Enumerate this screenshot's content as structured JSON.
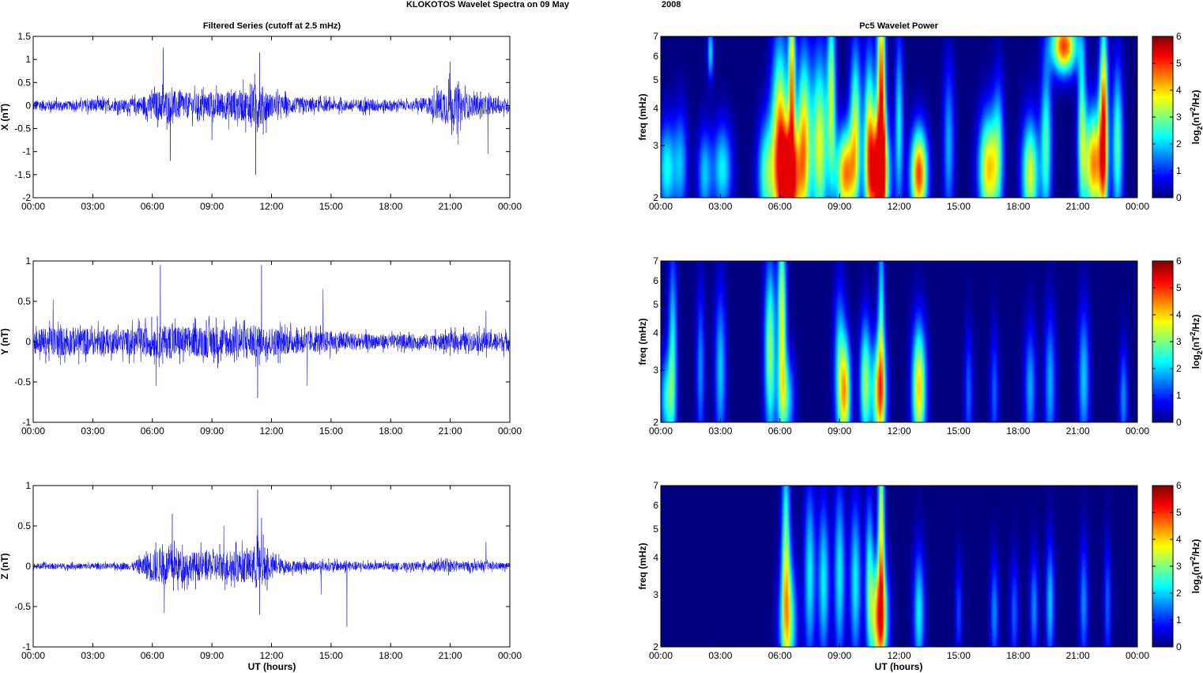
{
  "figure": {
    "suptitle": "KLOKOTOS Wavelet Spectra on 09 May",
    "suptitle_year": "2008",
    "left_title": "Filtered Series (cutoff at 2.5 mHz)",
    "right_title": "Pc5 Wavelet Power",
    "xlabel": "UT (hours)",
    "spec_ylabel": "freq (mHz)",
    "colorbar_label": "log2(nT2/Hz)"
  },
  "chart_data": [
    {
      "type": "line",
      "component": "X",
      "ylabel": "X (nT)",
      "xlim": [
        0,
        24
      ],
      "ylim": [
        -2,
        1.5
      ],
      "yticks": [
        -2,
        -1.5,
        -1,
        -0.5,
        0,
        0.5,
        1,
        1.5
      ],
      "ytick_labels": [
        "-2",
        "-1.5",
        "-1",
        "-0.5",
        "0",
        "0.5",
        "1",
        "1.5"
      ],
      "xtick_labels": [
        "00:00",
        "03:00",
        "06:00",
        "09:00",
        "12:00",
        "15:00",
        "18:00",
        "21:00",
        "00:00"
      ],
      "series": [
        {
          "color": "#0000ff",
          "envelope_hours": [
            0,
            1,
            2,
            3,
            4,
            5,
            6,
            6.5,
            7,
            8,
            9,
            10,
            11,
            11.3,
            11.6,
            12,
            13,
            14,
            15,
            16,
            17,
            18,
            19,
            20,
            20.5,
            21,
            21.5,
            22,
            23,
            24
          ],
          "envelope_nT": [
            0.2,
            0.2,
            0.15,
            0.25,
            0.2,
            0.25,
            0.45,
            0.6,
            0.55,
            0.45,
            0.45,
            0.55,
            0.6,
            0.9,
            0.7,
            0.4,
            0.3,
            0.25,
            0.2,
            0.2,
            0.25,
            0.2,
            0.15,
            0.35,
            0.6,
            0.75,
            0.6,
            0.4,
            0.3,
            0.25
          ],
          "peaks": [
            {
              "x": 6.55,
              "y": 1.25
            },
            {
              "x": 6.9,
              "y": -1.2
            },
            {
              "x": 11.2,
              "y": -1.5
            },
            {
              "x": 11.4,
              "y": 1.15
            },
            {
              "x": 9.0,
              "y": -0.75
            },
            {
              "x": 21.0,
              "y": 0.95
            },
            {
              "x": 22.9,
              "y": -1.05
            },
            {
              "x": 21.4,
              "y": -0.85
            },
            {
              "x": 24.0,
              "y": -0.55
            }
          ]
        }
      ]
    },
    {
      "type": "heatmap",
      "component": "X",
      "title": "Pc5 Wavelet Power",
      "ylabel": "freq (mHz)",
      "xlim": [
        0,
        24
      ],
      "ylim": [
        2,
        7
      ],
      "yscale": "log",
      "yticks": [
        2,
        3,
        4,
        5,
        6,
        7
      ],
      "xtick_labels": [
        "00:00",
        "03:00",
        "06:00",
        "09:00",
        "12:00",
        "15:00",
        "18:00",
        "21:00",
        "00:00"
      ],
      "colorbar": {
        "label": "log2(nT2/Hz)",
        "range": [
          0,
          6
        ],
        "ticks": [
          0,
          1,
          2,
          3,
          4,
          5,
          6
        ],
        "colormap": "jet"
      },
      "blobs": [
        {
          "t": 0.3,
          "f": 2.5,
          "p": 2.6,
          "wt": 0.3,
          "wf": 0.26
        },
        {
          "t": 1.0,
          "f": 2.6,
          "p": 2.0,
          "wt": 0.25,
          "wf": 0.3
        },
        {
          "t": 2.2,
          "f": 2.4,
          "p": 2.1,
          "wt": 0.25,
          "wf": 0.25
        },
        {
          "t": 3.1,
          "f": 2.5,
          "p": 2.5,
          "wt": 0.35,
          "wf": 0.25
        },
        {
          "t": 2.5,
          "f": 6.2,
          "p": 2.5,
          "wt": 0.1,
          "wf": 0.15
        },
        {
          "t": 5.3,
          "f": 2.4,
          "p": 3.0,
          "wt": 0.3,
          "wf": 0.3
        },
        {
          "t": 6.0,
          "f": 3.0,
          "p": 5.0,
          "wt": 0.3,
          "wf": 0.55
        },
        {
          "t": 6.5,
          "f": 2.3,
          "p": 6.0,
          "wt": 0.35,
          "wf": 0.28
        },
        {
          "t": 6.6,
          "f": 5.0,
          "p": 4.5,
          "wt": 0.12,
          "wf": 0.5
        },
        {
          "t": 7.2,
          "f": 3.0,
          "p": 4.5,
          "wt": 0.25,
          "wf": 0.5
        },
        {
          "t": 8.0,
          "f": 3.0,
          "p": 4.0,
          "wt": 0.3,
          "wf": 0.5
        },
        {
          "t": 8.6,
          "f": 4.5,
          "p": 3.5,
          "wt": 0.15,
          "wf": 0.5
        },
        {
          "t": 9.3,
          "f": 2.4,
          "p": 5.0,
          "wt": 0.35,
          "wf": 0.25
        },
        {
          "t": 9.8,
          "f": 3.5,
          "p": 3.5,
          "wt": 0.2,
          "wf": 0.45
        },
        {
          "t": 10.5,
          "f": 3.0,
          "p": 4.0,
          "wt": 0.2,
          "wf": 0.5
        },
        {
          "t": 11.0,
          "f": 2.4,
          "p": 6.0,
          "wt": 0.35,
          "wf": 0.3
        },
        {
          "t": 11.1,
          "f": 4.5,
          "p": 5.5,
          "wt": 0.15,
          "wf": 0.65
        },
        {
          "t": 12.0,
          "f": 3.5,
          "p": 2.5,
          "wt": 0.15,
          "wf": 0.5
        },
        {
          "t": 13.0,
          "f": 2.4,
          "p": 5.5,
          "wt": 0.3,
          "wf": 0.25
        },
        {
          "t": 14.5,
          "f": 3.0,
          "p": 2.0,
          "wt": 0.2,
          "wf": 0.45
        },
        {
          "t": 16.5,
          "f": 2.5,
          "p": 4.5,
          "wt": 0.35,
          "wf": 0.3
        },
        {
          "t": 17.0,
          "f": 3.0,
          "p": 2.0,
          "wt": 0.2,
          "wf": 0.4
        },
        {
          "t": 18.6,
          "f": 2.4,
          "p": 4.0,
          "wt": 0.3,
          "wf": 0.3
        },
        {
          "t": 19.4,
          "f": 3.0,
          "p": 3.0,
          "wt": 0.2,
          "wf": 0.45
        },
        {
          "t": 20.3,
          "f": 6.5,
          "p": 5.5,
          "wt": 0.45,
          "wf": 0.15
        },
        {
          "t": 21.2,
          "f": 3.5,
          "p": 3.0,
          "wt": 0.15,
          "wf": 0.5
        },
        {
          "t": 21.8,
          "f": 2.6,
          "p": 5.0,
          "wt": 0.35,
          "wf": 0.3
        },
        {
          "t": 22.3,
          "f": 3.5,
          "p": 5.5,
          "wt": 0.15,
          "wf": 0.55
        },
        {
          "t": 23.0,
          "f": 3.0,
          "p": 3.0,
          "wt": 0.2,
          "wf": 0.45
        }
      ]
    },
    {
      "type": "line",
      "component": "Y",
      "ylabel": "Y (nT)",
      "xlim": [
        0,
        24
      ],
      "ylim": [
        -1,
        1
      ],
      "yticks": [
        -1,
        -0.5,
        0,
        0.5,
        1
      ],
      "ytick_labels": [
        "-1",
        "-0.5",
        "0",
        "0.5",
        "1"
      ],
      "xtick_labels": [
        "00:00",
        "03:00",
        "06:00",
        "09:00",
        "12:00",
        "15:00",
        "18:00",
        "21:00",
        "00:00"
      ],
      "series": [
        {
          "color": "#0000ff",
          "envelope_hours": [
            0,
            1,
            2,
            3,
            4,
            5,
            6,
            7,
            8,
            9,
            10,
            11,
            11.5,
            12,
            13,
            14,
            15,
            16,
            17,
            18,
            19,
            20,
            21,
            22,
            23,
            24
          ],
          "envelope_nT": [
            0.25,
            0.3,
            0.3,
            0.28,
            0.25,
            0.28,
            0.32,
            0.35,
            0.3,
            0.35,
            0.32,
            0.35,
            0.3,
            0.3,
            0.25,
            0.22,
            0.22,
            0.18,
            0.15,
            0.15,
            0.15,
            0.15,
            0.18,
            0.2,
            0.2,
            0.2
          ],
          "peaks": [
            {
              "x": 6.4,
              "y": 0.95
            },
            {
              "x": 11.5,
              "y": 0.95
            },
            {
              "x": 11.3,
              "y": -0.7
            },
            {
              "x": 6.2,
              "y": -0.55
            },
            {
              "x": 14.6,
              "y": 0.65
            },
            {
              "x": 1.0,
              "y": 0.52
            },
            {
              "x": 13.8,
              "y": -0.55
            },
            {
              "x": 22.8,
              "y": 0.38
            }
          ]
        }
      ]
    },
    {
      "type": "heatmap",
      "component": "Y",
      "ylabel": "freq (mHz)",
      "xlim": [
        0,
        24
      ],
      "ylim": [
        2,
        7
      ],
      "yscale": "log",
      "yticks": [
        2,
        3,
        4,
        5,
        6,
        7
      ],
      "xtick_labels": [
        "00:00",
        "03:00",
        "06:00",
        "09:00",
        "12:00",
        "15:00",
        "18:00",
        "21:00",
        "00:00"
      ],
      "colorbar": {
        "label": "log2(nT2/Hz)",
        "range": [
          0,
          6
        ],
        "ticks": [
          0,
          1,
          2,
          3,
          4,
          5,
          6
        ],
        "colormap": "jet"
      },
      "blobs": [
        {
          "t": 0.3,
          "f": 2.4,
          "p": 2.5,
          "wt": 0.25,
          "wf": 0.25
        },
        {
          "t": 0.6,
          "f": 3.5,
          "p": 2.5,
          "wt": 0.15,
          "wf": 0.55
        },
        {
          "t": 2.0,
          "f": 3.0,
          "p": 1.8,
          "wt": 0.15,
          "wf": 0.45
        },
        {
          "t": 3.0,
          "f": 3.0,
          "p": 2.2,
          "wt": 0.2,
          "wf": 0.45
        },
        {
          "t": 5.5,
          "f": 3.5,
          "p": 3.5,
          "wt": 0.2,
          "wf": 0.5
        },
        {
          "t": 6.1,
          "f": 4.5,
          "p": 4.0,
          "wt": 0.15,
          "wf": 0.55
        },
        {
          "t": 6.3,
          "f": 2.4,
          "p": 2.5,
          "wt": 0.3,
          "wf": 0.25
        },
        {
          "t": 9.0,
          "f": 3.0,
          "p": 2.5,
          "wt": 0.2,
          "wf": 0.45
        },
        {
          "t": 9.3,
          "f": 2.5,
          "p": 4.0,
          "wt": 0.2,
          "wf": 0.3
        },
        {
          "t": 10.3,
          "f": 2.7,
          "p": 3.5,
          "wt": 0.2,
          "wf": 0.35
        },
        {
          "t": 11.0,
          "f": 2.5,
          "p": 4.5,
          "wt": 0.25,
          "wf": 0.3
        },
        {
          "t": 11.1,
          "f": 4.5,
          "p": 2.5,
          "wt": 0.12,
          "wf": 0.6
        },
        {
          "t": 13.0,
          "f": 2.6,
          "p": 4.5,
          "wt": 0.25,
          "wf": 0.35
        },
        {
          "t": 15.5,
          "f": 2.5,
          "p": 1.5,
          "wt": 0.15,
          "wf": 0.35
        },
        {
          "t": 16.8,
          "f": 2.5,
          "p": 1.5,
          "wt": 0.15,
          "wf": 0.35
        },
        {
          "t": 18.6,
          "f": 2.6,
          "p": 2.0,
          "wt": 0.2,
          "wf": 0.35
        },
        {
          "t": 19.6,
          "f": 2.7,
          "p": 2.0,
          "wt": 0.2,
          "wf": 0.4
        },
        {
          "t": 21.3,
          "f": 2.8,
          "p": 2.2,
          "wt": 0.2,
          "wf": 0.4
        },
        {
          "t": 23.3,
          "f": 2.4,
          "p": 1.8,
          "wt": 0.15,
          "wf": 0.3
        }
      ]
    },
    {
      "type": "line",
      "component": "Z",
      "ylabel": "Z (nT)",
      "xlim": [
        0,
        24
      ],
      "ylim": [
        -1,
        1
      ],
      "yticks": [
        -1,
        -0.5,
        0,
        0.5,
        1
      ],
      "ytick_labels": [
        "-1",
        "-0.5",
        "0",
        "0.5",
        "1"
      ],
      "xtick_labels": [
        "00:00",
        "03:00",
        "06:00",
        "09:00",
        "12:00",
        "15:00",
        "18:00",
        "21:00",
        "00:00"
      ],
      "series": [
        {
          "color": "#0000ff",
          "envelope_hours": [
            0,
            1,
            2,
            3,
            4,
            5,
            5.5,
            6,
            7,
            8,
            9,
            10,
            11,
            11.3,
            11.6,
            12,
            13,
            14,
            15,
            16,
            17,
            18,
            19,
            20,
            21,
            22,
            23,
            24
          ],
          "envelope_nT": [
            0.06,
            0.06,
            0.06,
            0.06,
            0.06,
            0.08,
            0.2,
            0.35,
            0.35,
            0.3,
            0.3,
            0.32,
            0.35,
            0.55,
            0.45,
            0.2,
            0.12,
            0.1,
            0.1,
            0.1,
            0.08,
            0.07,
            0.08,
            0.1,
            0.12,
            0.1,
            0.08,
            0.07
          ],
          "peaks": [
            {
              "x": 11.3,
              "y": 0.95
            },
            {
              "x": 11.5,
              "y": 0.6
            },
            {
              "x": 7.0,
              "y": 0.65
            },
            {
              "x": 6.6,
              "y": -0.58
            },
            {
              "x": 11.4,
              "y": -0.6
            },
            {
              "x": 15.8,
              "y": -0.75
            },
            {
              "x": 9.6,
              "y": 0.5
            },
            {
              "x": 22.8,
              "y": 0.3
            },
            {
              "x": 14.5,
              "y": -0.35
            }
          ]
        }
      ]
    },
    {
      "type": "heatmap",
      "component": "Z",
      "ylabel": "freq (mHz)",
      "xlim": [
        0,
        24
      ],
      "ylim": [
        2,
        7
      ],
      "yscale": "log",
      "yticks": [
        2,
        3,
        4,
        5,
        6,
        7
      ],
      "xtick_labels": [
        "00:00",
        "03:00",
        "06:00",
        "09:00",
        "12:00",
        "15:00",
        "18:00",
        "21:00",
        "00:00"
      ],
      "colorbar": {
        "label": "log2(nT2/Hz)",
        "range": [
          0,
          6
        ],
        "ticks": [
          0,
          1,
          2,
          3,
          4,
          5,
          6
        ],
        "colormap": "jet"
      },
      "blobs": [
        {
          "t": 6.4,
          "f": 2.4,
          "p": 3.5,
          "wt": 0.3,
          "wf": 0.35
        },
        {
          "t": 6.3,
          "f": 4.5,
          "p": 3.0,
          "wt": 0.15,
          "wf": 0.55
        },
        {
          "t": 7.5,
          "f": 3.5,
          "p": 2.5,
          "wt": 0.2,
          "wf": 0.5
        },
        {
          "t": 8.2,
          "f": 3.3,
          "p": 2.5,
          "wt": 0.2,
          "wf": 0.45
        },
        {
          "t": 9.0,
          "f": 3.5,
          "p": 2.5,
          "wt": 0.2,
          "wf": 0.5
        },
        {
          "t": 9.8,
          "f": 3.3,
          "p": 2.5,
          "wt": 0.2,
          "wf": 0.45
        },
        {
          "t": 10.5,
          "f": 3.5,
          "p": 2.5,
          "wt": 0.15,
          "wf": 0.45
        },
        {
          "t": 11.0,
          "f": 2.5,
          "p": 5.0,
          "wt": 0.3,
          "wf": 0.3
        },
        {
          "t": 11.1,
          "f": 5.0,
          "p": 4.0,
          "wt": 0.12,
          "wf": 0.6
        },
        {
          "t": 13.0,
          "f": 2.6,
          "p": 2.5,
          "wt": 0.2,
          "wf": 0.35
        },
        {
          "t": 15.0,
          "f": 2.6,
          "p": 1.3,
          "wt": 0.12,
          "wf": 0.3
        },
        {
          "t": 16.8,
          "f": 2.6,
          "p": 1.8,
          "wt": 0.15,
          "wf": 0.3
        },
        {
          "t": 17.8,
          "f": 2.6,
          "p": 1.5,
          "wt": 0.15,
          "wf": 0.3
        },
        {
          "t": 18.8,
          "f": 2.7,
          "p": 1.8,
          "wt": 0.15,
          "wf": 0.3
        },
        {
          "t": 19.6,
          "f": 2.8,
          "p": 2.2,
          "wt": 0.15,
          "wf": 0.35
        },
        {
          "t": 21.3,
          "f": 2.8,
          "p": 1.8,
          "wt": 0.15,
          "wf": 0.35
        },
        {
          "t": 22.5,
          "f": 2.8,
          "p": 1.5,
          "wt": 0.12,
          "wf": 0.35
        }
      ]
    }
  ]
}
